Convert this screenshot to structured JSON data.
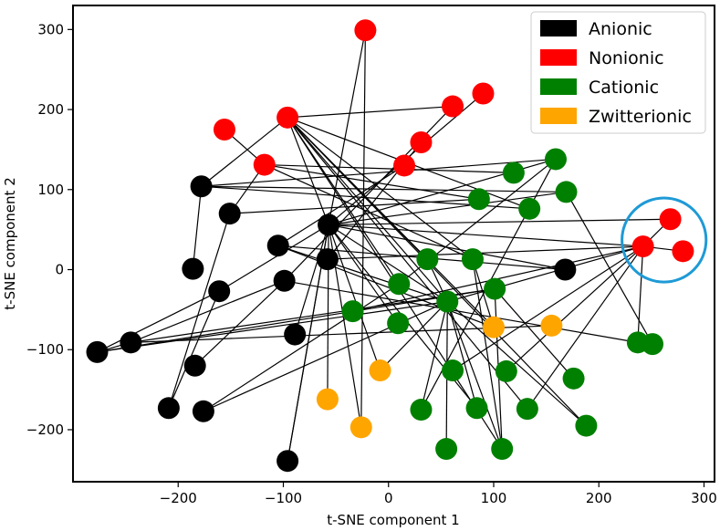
{
  "chart_data": {
    "type": "scatter",
    "title": "",
    "xlabel": "t-SNE component 1",
    "ylabel": "t-SNE component 2",
    "xlim": [
      -300,
      310
    ],
    "ylim": [
      -265,
      330
    ],
    "xticks": [
      -200,
      -100,
      0,
      100,
      200,
      300
    ],
    "yticks": [
      -200,
      -100,
      0,
      100,
      200,
      300
    ],
    "xtick_labels": [
      "−200",
      "−100",
      "0",
      "100",
      "200",
      "300"
    ],
    "ytick_labels": [
      "−200",
      "−100",
      "0",
      "100",
      "200",
      "300"
    ],
    "grid": false,
    "legend_position": "top-right",
    "series": [
      {
        "name": "Anionic",
        "color": "#000000",
        "points": [
          [
            -178,
            104
          ],
          [
            -151,
            70
          ],
          [
            -105,
            30
          ],
          [
            -57,
            56
          ],
          [
            -58,
            13
          ],
          [
            -186,
            1
          ],
          [
            -161,
            -27
          ],
          [
            -99,
            -14
          ],
          [
            -277,
            -103
          ],
          [
            -245,
            -91
          ],
          [
            -89,
            -81
          ],
          [
            -184,
            -120
          ],
          [
            -209,
            -173
          ],
          [
            -176,
            -177
          ],
          [
            -96,
            -239
          ],
          [
            168,
            0
          ]
        ]
      },
      {
        "name": "Nonionic",
        "color": "#ff0000",
        "points": [
          [
            -22,
            299
          ],
          [
            -156,
            175
          ],
          [
            -96,
            190
          ],
          [
            -118,
            131
          ],
          [
            61,
            204
          ],
          [
            90,
            220
          ],
          [
            31,
            159
          ],
          [
            15,
            130
          ],
          [
            268,
            63
          ],
          [
            242,
            29
          ],
          [
            280,
            23
          ]
        ]
      },
      {
        "name": "Cationic",
        "color": "#008000",
        "points": [
          [
            119,
            121
          ],
          [
            159,
            138
          ],
          [
            169,
            97
          ],
          [
            86,
            88
          ],
          [
            134,
            76
          ],
          [
            37,
            13
          ],
          [
            80,
            13
          ],
          [
            10,
            -18
          ],
          [
            56,
            -40
          ],
          [
            101,
            -24
          ],
          [
            -34,
            -52
          ],
          [
            9,
            -67
          ],
          [
            61,
            -126
          ],
          [
            112,
            -127
          ],
          [
            176,
            -136
          ],
          [
            31,
            -175
          ],
          [
            84,
            -173
          ],
          [
            132,
            -174
          ],
          [
            188,
            -195
          ],
          [
            55,
            -224
          ],
          [
            108,
            -224
          ],
          [
            237,
            -91
          ],
          [
            251,
            -93
          ]
        ]
      },
      {
        "name": "Zwitterionic",
        "color": "#ffa500",
        "points": [
          [
            100,
            -72
          ],
          [
            155,
            -70
          ],
          [
            -8,
            -126
          ],
          [
            -58,
            -162
          ],
          [
            -26,
            -197
          ]
        ]
      }
    ],
    "edges": [
      [
        [
          -22,
          299
        ],
        [
          -57,
          56
        ]
      ],
      [
        [
          -156,
          175
        ],
        [
          -118,
          131
        ]
      ],
      [
        [
          -96,
          190
        ],
        [
          61,
          204
        ]
      ],
      [
        [
          -96,
          190
        ],
        [
          -178,
          104
        ]
      ],
      [
        [
          -96,
          190
        ],
        [
          -57,
          56
        ]
      ],
      [
        [
          -96,
          190
        ],
        [
          37,
          13
        ]
      ],
      [
        [
          -96,
          190
        ],
        [
          56,
          -40
        ]
      ],
      [
        [
          -96,
          190
        ],
        [
          80,
          13
        ]
      ],
      [
        [
          -96,
          190
        ],
        [
          134,
          76
        ]
      ],
      [
        [
          -96,
          190
        ],
        [
          100,
          -72
        ]
      ],
      [
        [
          -96,
          190
        ],
        [
          132,
          -174
        ]
      ],
      [
        [
          -96,
          190
        ],
        [
          188,
          -195
        ]
      ],
      [
        [
          -96,
          190
        ],
        [
          10,
          -18
        ]
      ],
      [
        [
          -96,
          190
        ],
        [
          108,
          -224
        ]
      ],
      [
        [
          -118,
          131
        ],
        [
          -151,
          70
        ]
      ],
      [
        [
          -118,
          131
        ],
        [
          119,
          121
        ]
      ],
      [
        [
          -118,
          131
        ],
        [
          86,
          88
        ]
      ],
      [
        [
          -118,
          131
        ],
        [
          80,
          13
        ]
      ],
      [
        [
          90,
          220
        ],
        [
          -57,
          56
        ]
      ],
      [
        [
          61,
          204
        ],
        [
          -99,
          -14
        ]
      ],
      [
        [
          31,
          159
        ],
        [
          -58,
          13
        ]
      ],
      [
        [
          15,
          130
        ],
        [
          -105,
          30
        ]
      ],
      [
        [
          -178,
          104
        ],
        [
          159,
          138
        ]
      ],
      [
        [
          -178,
          104
        ],
        [
          169,
          97
        ]
      ],
      [
        [
          -178,
          104
        ],
        [
          -186,
          1
        ]
      ],
      [
        [
          -178,
          104
        ],
        [
          134,
          76
        ]
      ],
      [
        [
          -151,
          70
        ],
        [
          86,
          88
        ]
      ],
      [
        [
          -57,
          56
        ],
        [
          268,
          63
        ]
      ],
      [
        [
          -57,
          56
        ],
        [
          242,
          29
        ]
      ],
      [
        [
          -57,
          56
        ],
        [
          159,
          138
        ]
      ],
      [
        [
          -57,
          56
        ],
        [
          9,
          -67
        ]
      ],
      [
        [
          -57,
          56
        ],
        [
          -8,
          -126
        ]
      ],
      [
        [
          -57,
          56
        ],
        [
          -58,
          -162
        ]
      ],
      [
        [
          -57,
          56
        ],
        [
          -89,
          -81
        ]
      ],
      [
        [
          -57,
          56
        ],
        [
          84,
          -173
        ]
      ],
      [
        [
          -57,
          56
        ],
        [
          -96,
          -239
        ]
      ],
      [
        [
          -57,
          56
        ],
        [
          56,
          -40
        ]
      ],
      [
        [
          -57,
          56
        ],
        [
          168,
          0
        ]
      ],
      [
        [
          -105,
          30
        ],
        [
          56,
          -40
        ]
      ],
      [
        [
          -105,
          30
        ],
        [
          100,
          -72
        ]
      ],
      [
        [
          -105,
          30
        ],
        [
          168,
          0
        ]
      ],
      [
        [
          -58,
          13
        ],
        [
          242,
          29
        ]
      ],
      [
        [
          -161,
          -27
        ],
        [
          -57,
          56
        ]
      ],
      [
        [
          -99,
          -14
        ],
        [
          237,
          -91
        ]
      ],
      [
        [
          -99,
          -14
        ],
        [
          -184,
          -120
        ]
      ],
      [
        [
          -277,
          -103
        ],
        [
          -245,
          -91
        ]
      ],
      [
        [
          -277,
          -103
        ],
        [
          -161,
          -27
        ]
      ],
      [
        [
          -277,
          -103
        ],
        [
          56,
          -40
        ]
      ],
      [
        [
          -277,
          -103
        ],
        [
          101,
          -24
        ]
      ],
      [
        [
          -245,
          -91
        ],
        [
          101,
          -24
        ]
      ],
      [
        [
          -245,
          -91
        ],
        [
          -99,
          -14
        ]
      ],
      [
        [
          -245,
          -91
        ],
        [
          155,
          -70
        ]
      ],
      [
        [
          -209,
          -173
        ],
        [
          -151,
          70
        ]
      ],
      [
        [
          -209,
          -173
        ],
        [
          -161,
          -27
        ]
      ],
      [
        [
          -176,
          -177
        ],
        [
          10,
          -18
        ]
      ],
      [
        [
          -176,
          -177
        ],
        [
          56,
          -40
        ]
      ],
      [
        [
          -96,
          -239
        ],
        [
          -57,
          56
        ]
      ],
      [
        [
          242,
          29
        ],
        [
          268,
          63
        ]
      ],
      [
        [
          242,
          29
        ],
        [
          280,
          23
        ]
      ],
      [
        [
          242,
          29
        ],
        [
          56,
          -40
        ]
      ],
      [
        [
          242,
          29
        ],
        [
          61,
          -126
        ]
      ],
      [
        [
          242,
          29
        ],
        [
          112,
          -127
        ]
      ],
      [
        [
          242,
          29
        ],
        [
          132,
          -174
        ]
      ],
      [
        [
          242,
          29
        ],
        [
          -34,
          -52
        ]
      ],
      [
        [
          242,
          29
        ],
        [
          237,
          -91
        ]
      ],
      [
        [
          56,
          -40
        ],
        [
          31,
          -175
        ]
      ],
      [
        [
          56,
          -40
        ],
        [
          84,
          -173
        ]
      ],
      [
        [
          56,
          -40
        ],
        [
          55,
          -224
        ]
      ],
      [
        [
          56,
          -40
        ],
        [
          108,
          -224
        ]
      ],
      [
        [
          56,
          -40
        ],
        [
          37,
          13
        ]
      ],
      [
        [
          56,
          -40
        ],
        [
          188,
          -195
        ]
      ],
      [
        [
          101,
          -24
        ],
        [
          176,
          -136
        ]
      ],
      [
        [
          101,
          -24
        ],
        [
          108,
          -224
        ]
      ],
      [
        [
          80,
          13
        ],
        [
          108,
          -224
        ]
      ],
      [
        [
          80,
          13
        ],
        [
          100,
          -72
        ]
      ],
      [
        [
          159,
          138
        ],
        [
          31,
          -175
        ]
      ],
      [
        [
          159,
          138
        ],
        [
          10,
          -18
        ]
      ],
      [
        [
          169,
          97
        ],
        [
          -57,
          56
        ]
      ],
      [
        [
          169,
          97
        ],
        [
          251,
          -93
        ]
      ],
      [
        [
          -8,
          -126
        ],
        [
          56,
          -40
        ]
      ],
      [
        [
          -26,
          -197
        ],
        [
          -57,
          56
        ]
      ],
      [
        [
          -26,
          -197
        ],
        [
          -22,
          299
        ]
      ]
    ],
    "annotations": [
      {
        "type": "circle",
        "color": "#1f9ad6",
        "center": [
          262,
          37
        ],
        "radius_data_x": 40
      }
    ]
  }
}
